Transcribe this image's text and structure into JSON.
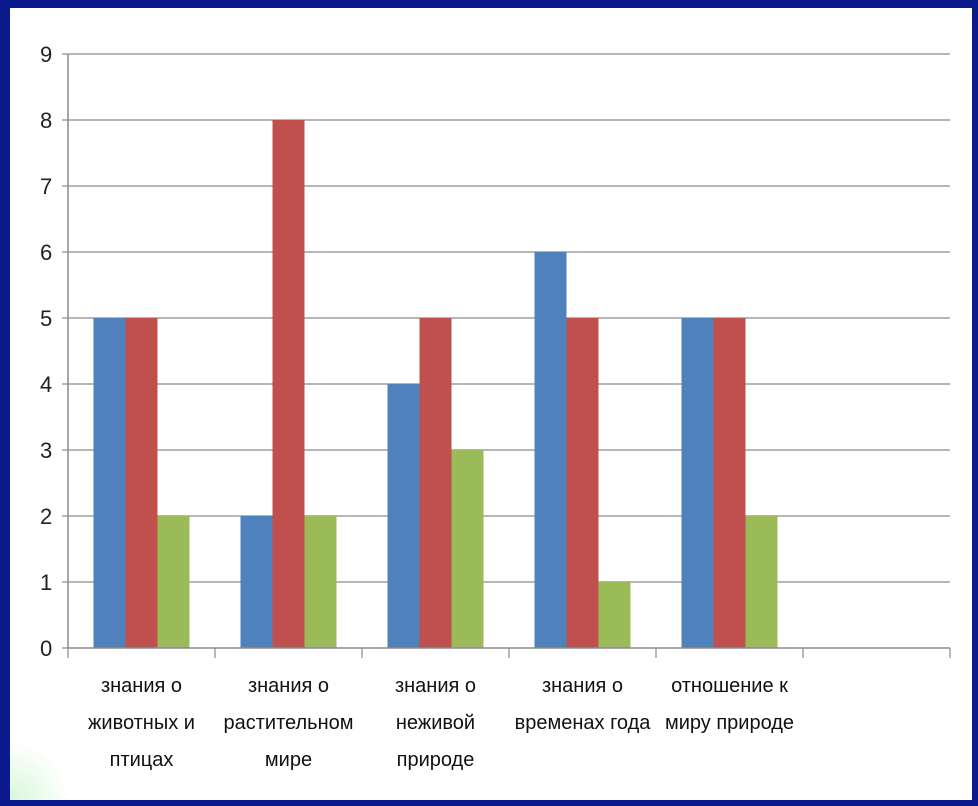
{
  "chart_data": {
    "type": "bar",
    "title": "",
    "xlabel": "",
    "ylabel": "",
    "ylim": [
      0,
      9
    ],
    "yticks": [
      "0",
      "1",
      "2",
      "3",
      "4",
      "5",
      "6",
      "7",
      "8",
      "9"
    ],
    "grid": true,
    "legend": "none",
    "categories": [
      [
        "знания о",
        "животных и",
        "птицах"
      ],
      [
        "знания о",
        "растительном",
        "мире"
      ],
      [
        "знания о",
        "неживой",
        "природе"
      ],
      [
        "знания о",
        "временах года"
      ],
      [
        "отношение к",
        "миру природе"
      ],
      []
    ],
    "series": [
      {
        "color": "#4f81bd",
        "values": [
          5,
          2,
          4,
          6,
          5,
          null
        ]
      },
      {
        "color": "#c0504d",
        "values": [
          5,
          8,
          5,
          5,
          5,
          null
        ]
      },
      {
        "color": "#9bbb59",
        "values": [
          2,
          2,
          3,
          1,
          2,
          null
        ]
      }
    ]
  }
}
